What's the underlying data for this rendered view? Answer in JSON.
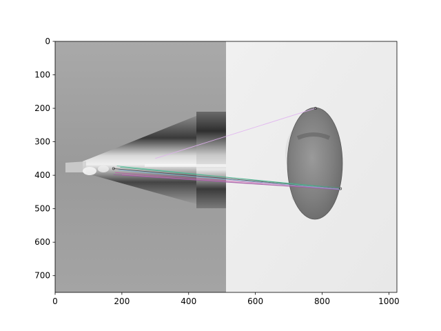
{
  "chart_data": {
    "type": "image",
    "title": "",
    "xlabel": "",
    "ylabel": "",
    "xlim": [
      0,
      1024
    ],
    "ylim": [
      750,
      0
    ],
    "xticks": [
      0,
      200,
      400,
      600,
      800,
      1000
    ],
    "yticks": [
      0,
      100,
      200,
      300,
      400,
      500,
      600,
      700
    ],
    "xtick_labels": [
      "0",
      "200",
      "400",
      "600",
      "800",
      "1000"
    ],
    "ytick_labels": [
      "0",
      "100",
      "200",
      "300",
      "400",
      "500",
      "600",
      "700"
    ],
    "grid": false,
    "image_split_x": 512,
    "keypoints": [
      {
        "x": 175,
        "y": 380
      },
      {
        "x": 855,
        "y": 440
      },
      {
        "x": 780,
        "y": 200
      }
    ],
    "matches": [
      {
        "x1": 175,
        "y1": 380,
        "x2": 855,
        "y2": 440,
        "color": "#444444"
      },
      {
        "x1": 185,
        "y1": 372,
        "x2": 853,
        "y2": 441,
        "color": "#5fc7a0"
      },
      {
        "x1": 195,
        "y1": 376,
        "x2": 852,
        "y2": 438,
        "color": "#44aa88"
      },
      {
        "x1": 180,
        "y1": 392,
        "x2": 850,
        "y2": 440,
        "color": "#c060a8"
      },
      {
        "x1": 200,
        "y1": 398,
        "x2": 848,
        "y2": 442,
        "color": "#d070c0"
      },
      {
        "x1": 175,
        "y1": 398,
        "x2": 852,
        "y2": 443,
        "color": "#9b5ca0"
      },
      {
        "x1": 190,
        "y1": 384,
        "x2": 854,
        "y2": 442,
        "color": "#7fb0d8"
      },
      {
        "x1": 300,
        "y1": 350,
        "x2": 780,
        "y2": 200,
        "color": "#e0b0f0"
      }
    ]
  }
}
